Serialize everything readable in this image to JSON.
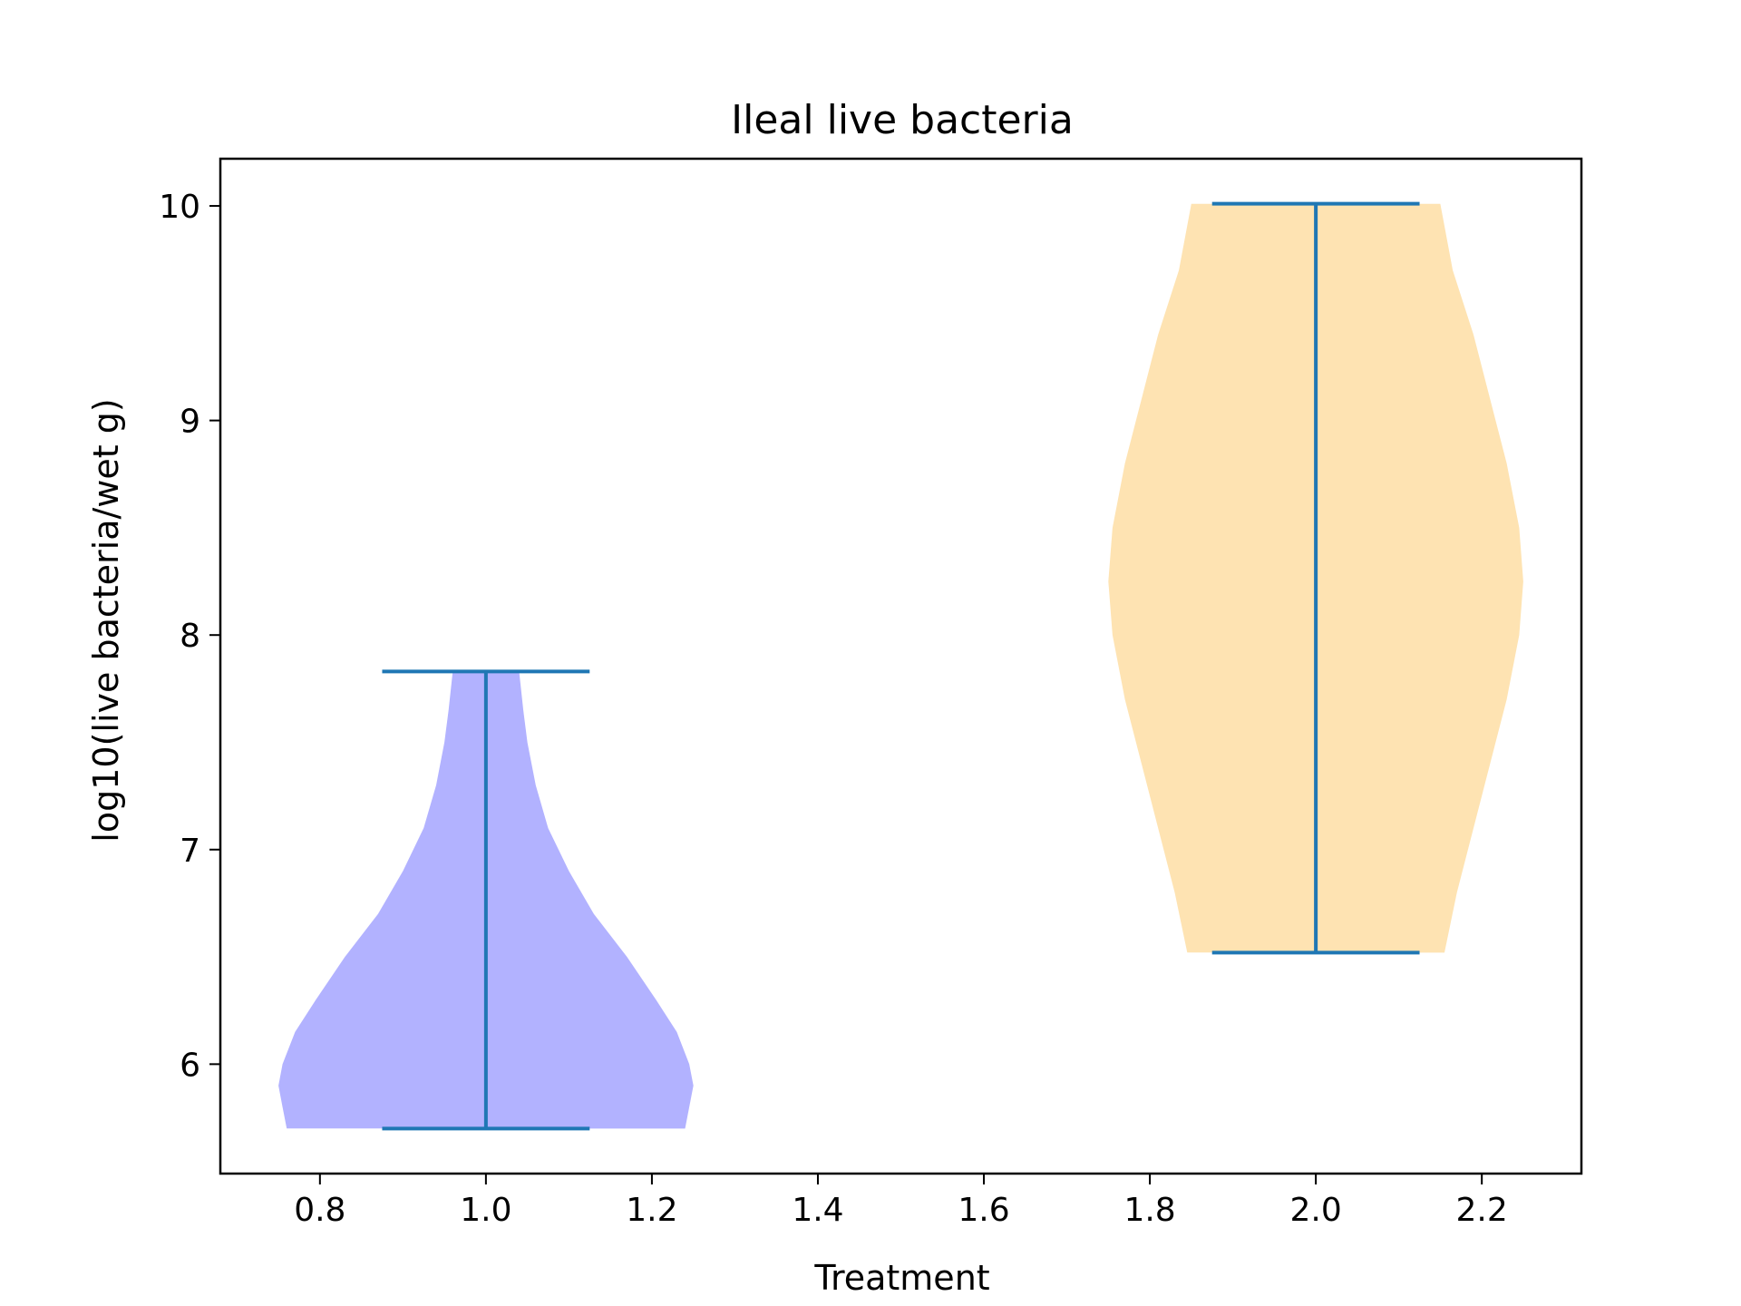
{
  "chart_data": {
    "type": "violin",
    "title": "Ileal live bacteria",
    "xlabel": "Treatment",
    "ylabel": "log10(live bacteria/wet g)",
    "xlim": [
      0.68,
      2.32
    ],
    "ylim": [
      5.49,
      10.22
    ],
    "x_ticks": [
      0.8,
      1.0,
      1.2,
      1.4,
      1.6,
      1.8,
      2.0,
      2.2
    ],
    "x_tick_labels": [
      "0.8",
      "1.0",
      "1.2",
      "1.4",
      "1.6",
      "1.8",
      "2.0",
      "2.2"
    ],
    "y_ticks": [
      6,
      7,
      8,
      9,
      10
    ],
    "y_tick_labels": [
      "6",
      "7",
      "8",
      "9",
      "10"
    ],
    "grid": false,
    "line_color": "#1f77b4",
    "violins": [
      {
        "position": 1.0,
        "min": 5.7,
        "max": 7.83,
        "fill_color": "#b2b2ff",
        "profile": [
          [
            5.7,
            0.24
          ],
          [
            5.8,
            0.245
          ],
          [
            5.9,
            0.25
          ],
          [
            6.0,
            0.245
          ],
          [
            6.15,
            0.23
          ],
          [
            6.3,
            0.205
          ],
          [
            6.5,
            0.17
          ],
          [
            6.7,
            0.13
          ],
          [
            6.9,
            0.1
          ],
          [
            7.1,
            0.075
          ],
          [
            7.3,
            0.06
          ],
          [
            7.5,
            0.05
          ],
          [
            7.65,
            0.045
          ],
          [
            7.83,
            0.04
          ]
        ]
      },
      {
        "position": 2.0,
        "min": 6.52,
        "max": 10.01,
        "fill_color": "#fee3b2",
        "profile": [
          [
            6.52,
            0.155
          ],
          [
            6.8,
            0.17
          ],
          [
            7.1,
            0.19
          ],
          [
            7.4,
            0.21
          ],
          [
            7.7,
            0.23
          ],
          [
            8.0,
            0.245
          ],
          [
            8.25,
            0.25
          ],
          [
            8.5,
            0.245
          ],
          [
            8.8,
            0.23
          ],
          [
            9.1,
            0.21
          ],
          [
            9.4,
            0.19
          ],
          [
            9.7,
            0.165
          ],
          [
            10.01,
            0.15
          ]
        ]
      }
    ]
  }
}
